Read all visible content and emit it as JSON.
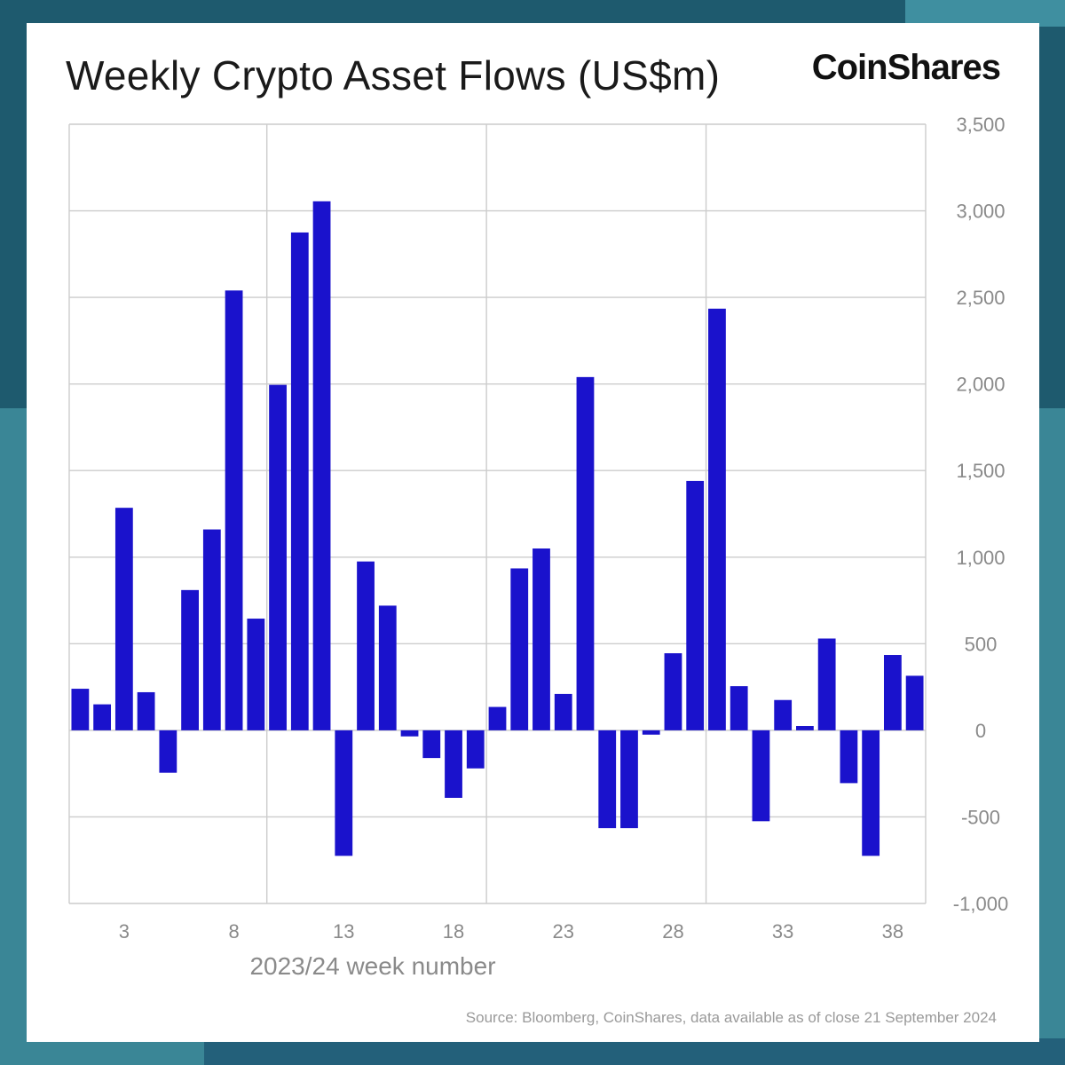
{
  "title": "Weekly Crypto Asset Flows (US$m)",
  "brand": "CoinShares",
  "source": "Source: Bloomberg, CoinShares, data available as of close 21 September 2024",
  "colors": {
    "bar": "#1a12cc",
    "grid": "#cccccc",
    "tick_text": "#8a8a8a"
  },
  "chart_data": {
    "type": "bar",
    "title": "Weekly Crypto Asset Flows (US$m)",
    "xlabel": "2023/24 week number",
    "ylabel": "",
    "ylim": [
      -1000,
      3500
    ],
    "yticks": [
      3500,
      3000,
      2500,
      2000,
      1500,
      1000,
      500,
      0,
      -500,
      -1000
    ],
    "ytick_labels": [
      "3,500",
      "3,000",
      "2,500",
      "2,000",
      "1,500",
      "1,000",
      "500",
      "0",
      "-500",
      "-1,000"
    ],
    "xtick_labels": [
      "3",
      "8",
      "13",
      "18",
      "23",
      "28",
      "33",
      "38"
    ],
    "xtick_positions": [
      3,
      8,
      13,
      18,
      23,
      28,
      33,
      38
    ],
    "vertical_gridlines_at": [
      0.5,
      9.5,
      19.5,
      29.5
    ],
    "grid": true,
    "y_axis_side": "right",
    "categories": [
      1,
      2,
      3,
      4,
      5,
      6,
      7,
      8,
      9,
      10,
      11,
      12,
      13,
      14,
      15,
      16,
      17,
      18,
      19,
      20,
      21,
      22,
      23,
      24,
      25,
      26,
      27,
      28,
      29,
      30,
      31,
      32,
      33,
      34,
      35,
      36,
      37,
      38,
      39
    ],
    "values": [
      240,
      150,
      1285,
      220,
      -245,
      810,
      1160,
      2540,
      645,
      1995,
      2875,
      3055,
      -725,
      975,
      720,
      -35,
      -160,
      -390,
      -220,
      135,
      935,
      1050,
      210,
      2040,
      -565,
      -565,
      -25,
      445,
      1440,
      2435,
      255,
      -525,
      175,
      25,
      530,
      -305,
      -725,
      435,
      315
    ]
  }
}
